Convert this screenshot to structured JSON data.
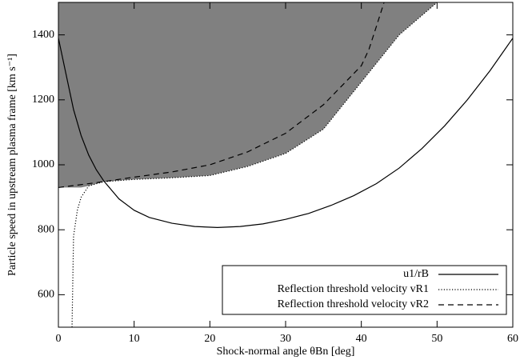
{
  "chart_data": {
    "type": "line",
    "xlabel": "Shock-normal angle θBn [deg]",
    "ylabel": "Particle speed in upstream plasma frame [km s⁻¹]",
    "xlim": [
      0,
      60
    ],
    "ylim": [
      500,
      1500
    ],
    "xticks": [
      0,
      10,
      20,
      30,
      40,
      50,
      60
    ],
    "yticks": [
      600,
      800,
      1000,
      1200,
      1400
    ],
    "shade_color": "#808080",
    "legend": "lower right",
    "series": [
      {
        "name": "u1/rB",
        "color": "#000000",
        "style": "solid",
        "x": [
          0,
          1,
          2,
          3,
          4,
          5,
          6,
          8,
          10,
          12,
          15,
          18,
          21,
          24,
          27,
          30,
          33,
          36,
          39,
          42,
          45,
          48,
          51,
          54,
          57,
          60
        ],
        "values": [
          1390,
          1280,
          1170,
          1090,
          1030,
          985,
          950,
          895,
          860,
          838,
          820,
          810,
          807,
          810,
          818,
          832,
          850,
          875,
          905,
          942,
          990,
          1050,
          1120,
          1200,
          1290,
          1390
        ]
      },
      {
        "name": "Reflection threshold velocity vR1",
        "color": "#000000",
        "style": "dotted",
        "x": [
          1.8,
          2,
          2.5,
          3,
          4,
          6,
          10,
          15,
          20,
          25,
          30,
          35,
          40,
          45,
          50
        ],
        "values": [
          500,
          780,
          860,
          900,
          935,
          948,
          955,
          960,
          967,
          995,
          1035,
          1110,
          1255,
          1400,
          1500
        ]
      },
      {
        "name": "Reflection threshold velocity vR2",
        "color": "#000000",
        "style": "dashed",
        "x": [
          0,
          5,
          10,
          15,
          20,
          25,
          30,
          35,
          40,
          41,
          42,
          43
        ],
        "values": [
          930,
          945,
          962,
          978,
          1000,
          1040,
          1097,
          1185,
          1305,
          1355,
          1427,
          1500
        ]
      }
    ]
  }
}
